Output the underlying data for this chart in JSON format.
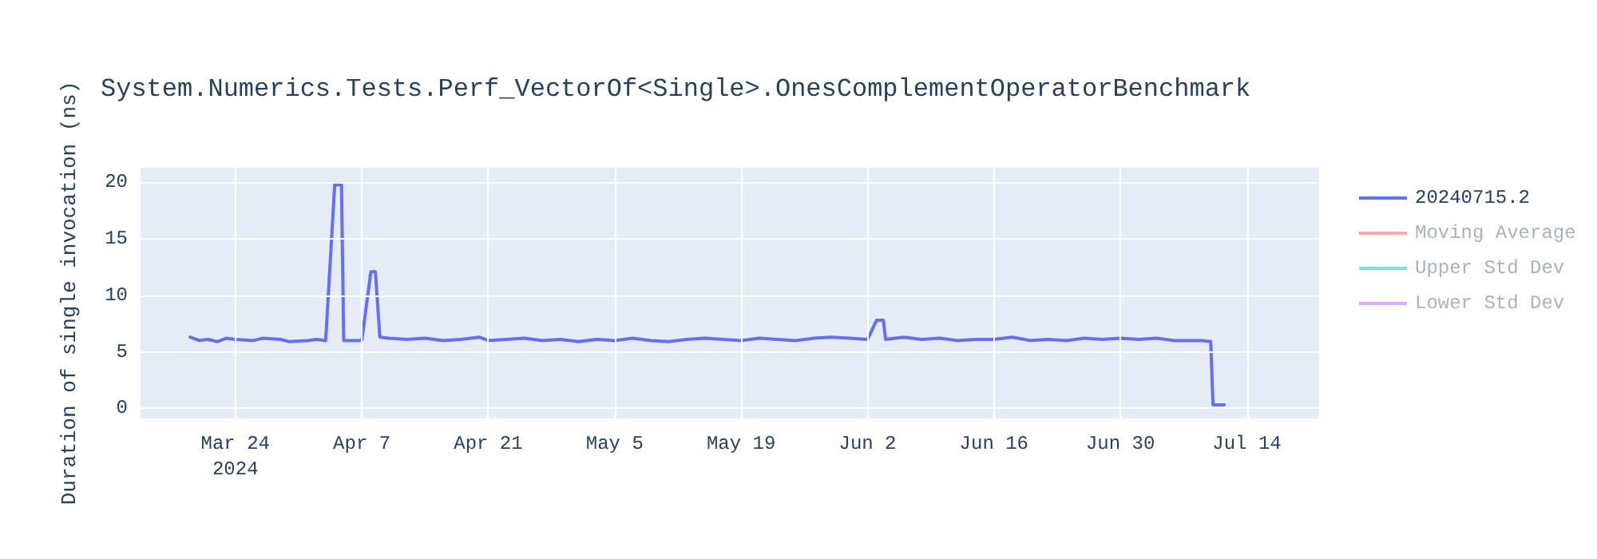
{
  "chart_data": {
    "type": "line",
    "title": "System.Numerics.Tests.Perf_VectorOf<Single>.OnesComplementOperatorBenchmark",
    "ylabel": "Duration of single invocation (ns)",
    "x": [
      "2024-03-19",
      "2024-03-20",
      "2024-03-21",
      "2024-03-22",
      "2024-03-23",
      "2024-03-24",
      "2024-03-26",
      "2024-03-27",
      "2024-03-29",
      "2024-03-30",
      "2024-04-01",
      "2024-04-02",
      "2024-04-03",
      "2024-04-04",
      "2024-04-04T18:00",
      "2024-04-05",
      "2024-04-07",
      "2024-04-08",
      "2024-04-08T12:00",
      "2024-04-09",
      "2024-04-10",
      "2024-04-12",
      "2024-04-14",
      "2024-04-16",
      "2024-04-18",
      "2024-04-20",
      "2024-04-21",
      "2024-04-23",
      "2024-04-25",
      "2024-04-27",
      "2024-04-29",
      "2024-05-01",
      "2024-05-03",
      "2024-05-05",
      "2024-05-07",
      "2024-05-09",
      "2024-05-11",
      "2024-05-13",
      "2024-05-15",
      "2024-05-17",
      "2024-05-19",
      "2024-05-21",
      "2024-05-23",
      "2024-05-25",
      "2024-05-27",
      "2024-05-29",
      "2024-05-31",
      "2024-06-02",
      "2024-06-03",
      "2024-06-03T18:00",
      "2024-06-04",
      "2024-06-06",
      "2024-06-08",
      "2024-06-10",
      "2024-06-12",
      "2024-06-14",
      "2024-06-16",
      "2024-06-18",
      "2024-06-20",
      "2024-06-22",
      "2024-06-24",
      "2024-06-26",
      "2024-06-28",
      "2024-06-30",
      "2024-07-02",
      "2024-07-04",
      "2024-07-06",
      "2024-07-08",
      "2024-07-09",
      "2024-07-10",
      "2024-07-10T06:00",
      "2024-07-11T12:00"
    ],
    "series": [
      {
        "name": "20240715.2",
        "color": "#636efa",
        "values": [
          6.3,
          6.0,
          6.1,
          5.9,
          6.2,
          6.1,
          6.0,
          6.2,
          6.1,
          5.9,
          6.0,
          6.1,
          6.0,
          19.8,
          19.8,
          6.0,
          6.0,
          12.1,
          12.1,
          6.3,
          6.2,
          6.1,
          6.2,
          6.0,
          6.1,
          6.3,
          6.0,
          6.1,
          6.2,
          6.0,
          6.1,
          5.9,
          6.1,
          6.0,
          6.2,
          6.0,
          5.9,
          6.1,
          6.2,
          6.1,
          6.0,
          6.2,
          6.1,
          6.0,
          6.2,
          6.3,
          6.2,
          6.1,
          7.8,
          7.8,
          6.1,
          6.3,
          6.1,
          6.2,
          6.0,
          6.1,
          6.1,
          6.3,
          6.0,
          6.1,
          6.0,
          6.2,
          6.1,
          6.2,
          6.1,
          6.2,
          6.0,
          6.0,
          6.0,
          5.9,
          0.3,
          0.3
        ]
      },
      {
        "name": "Moving Average",
        "color": "#ef553b",
        "values": [
          null,
          null,
          null,
          null,
          null,
          null,
          null,
          null,
          null,
          null,
          null,
          null,
          null,
          null,
          null,
          null,
          null,
          null,
          null,
          null,
          null,
          null,
          null,
          null,
          null,
          null,
          null,
          null,
          null,
          null,
          null,
          null,
          null,
          null,
          null,
          null,
          null,
          null,
          null,
          null,
          null,
          null,
          null,
          null,
          null,
          null,
          null,
          null,
          null,
          null,
          null,
          null,
          null,
          null,
          null,
          null,
          null,
          null,
          null,
          null,
          null,
          null,
          null,
          null,
          null,
          null,
          null,
          null,
          null,
          null,
          null,
          null
        ]
      },
      {
        "name": "Upper Std Dev",
        "color": "#00cc96",
        "values": [
          null,
          null,
          null,
          null,
          null,
          null,
          null,
          null,
          null,
          null,
          null,
          null,
          null,
          null,
          null,
          null,
          null,
          null,
          null,
          null,
          null,
          null,
          null,
          null,
          null,
          null,
          null,
          null,
          null,
          null,
          null,
          null,
          null,
          null,
          null,
          null,
          null,
          null,
          null,
          null,
          null,
          null,
          null,
          null,
          null,
          null,
          null,
          null,
          null,
          null,
          null,
          null,
          null,
          null,
          null,
          null,
          null,
          null,
          null,
          null,
          null,
          null,
          null,
          null,
          null,
          null,
          null,
          null,
          null,
          null,
          null,
          null
        ]
      },
      {
        "name": "Lower Std Dev",
        "color": "#ab63fa",
        "values": [
          null,
          null,
          null,
          null,
          null,
          null,
          null,
          null,
          null,
          null,
          null,
          null,
          null,
          null,
          null,
          null,
          null,
          null,
          null,
          null,
          null,
          null,
          null,
          null,
          null,
          null,
          null,
          null,
          null,
          null,
          null,
          null,
          null,
          null,
          null,
          null,
          null,
          null,
          null,
          null,
          null,
          null,
          null,
          null,
          null,
          null,
          null,
          null,
          null,
          null,
          null,
          null,
          null,
          null,
          null,
          null,
          null,
          null,
          null,
          null,
          null,
          null,
          null,
          null,
          null,
          null,
          null,
          null,
          null,
          null,
          null,
          null
        ]
      }
    ],
    "xlim": [
      "2024-03-13T12:00",
      "2024-07-22"
    ],
    "xticks": [
      {
        "value": "2024-03-24",
        "label": "Mar 24\n2024"
      },
      {
        "value": "2024-04-07",
        "label": "Apr 7"
      },
      {
        "value": "2024-04-21",
        "label": "Apr 21"
      },
      {
        "value": "2024-05-05",
        "label": "May 5"
      },
      {
        "value": "2024-05-19",
        "label": "May 19"
      },
      {
        "value": "2024-06-02",
        "label": "Jun 2"
      },
      {
        "value": "2024-06-16",
        "label": "Jun 16"
      },
      {
        "value": "2024-06-30",
        "label": "Jun 30"
      },
      {
        "value": "2024-07-14",
        "label": "Jul 14"
      }
    ],
    "ylim": [
      -0.9,
      21.3
    ],
    "yticks": [
      0,
      5,
      10,
      15,
      20
    ],
    "grid": true,
    "legend": "top right",
    "marker": "none",
    "line_style": "solid"
  }
}
